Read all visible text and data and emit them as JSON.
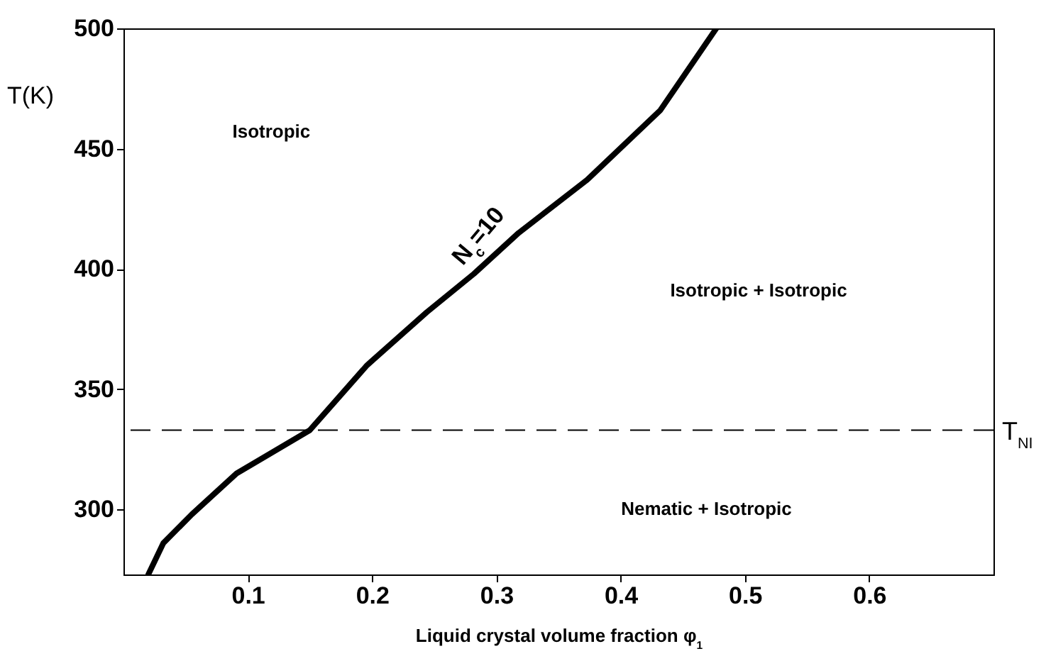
{
  "chart_data": {
    "type": "line",
    "xlabel": "Liquid crystal volume fraction φ$_{1}$",
    "ylabel": "T(K)",
    "series": [
      {
        "name": "N$_{c}$=10",
        "color": "#000000",
        "x": [
          0.02,
          0.032,
          0.055,
          0.091,
          0.114,
          0.15,
          0.196,
          0.244,
          0.282,
          0.318,
          0.373,
          0.432,
          0.477
        ],
        "values": [
          273,
          286,
          298,
          315,
          322,
          333,
          360,
          382,
          398,
          415,
          437,
          466,
          500
        ]
      }
    ],
    "xlim": [
      0,
      0.7
    ],
    "xticks": [
      0.1,
      0.2,
      0.3,
      0.4,
      0.5,
      0.6
    ],
    "ylim": [
      273,
      500
    ],
    "yticks": [
      300,
      350,
      400,
      450,
      500
    ],
    "ref_lines": [
      {
        "axis": "y",
        "value": 333,
        "label": "T$_{NI}$",
        "line_style": "dashed",
        "color": "#000000"
      }
    ],
    "annotations": [
      "Isotropic",
      "Isotropic + Isotropic",
      "Nematic + Isotropic"
    ],
    "grid": false,
    "line_style": "solid",
    "marker": "none"
  }
}
